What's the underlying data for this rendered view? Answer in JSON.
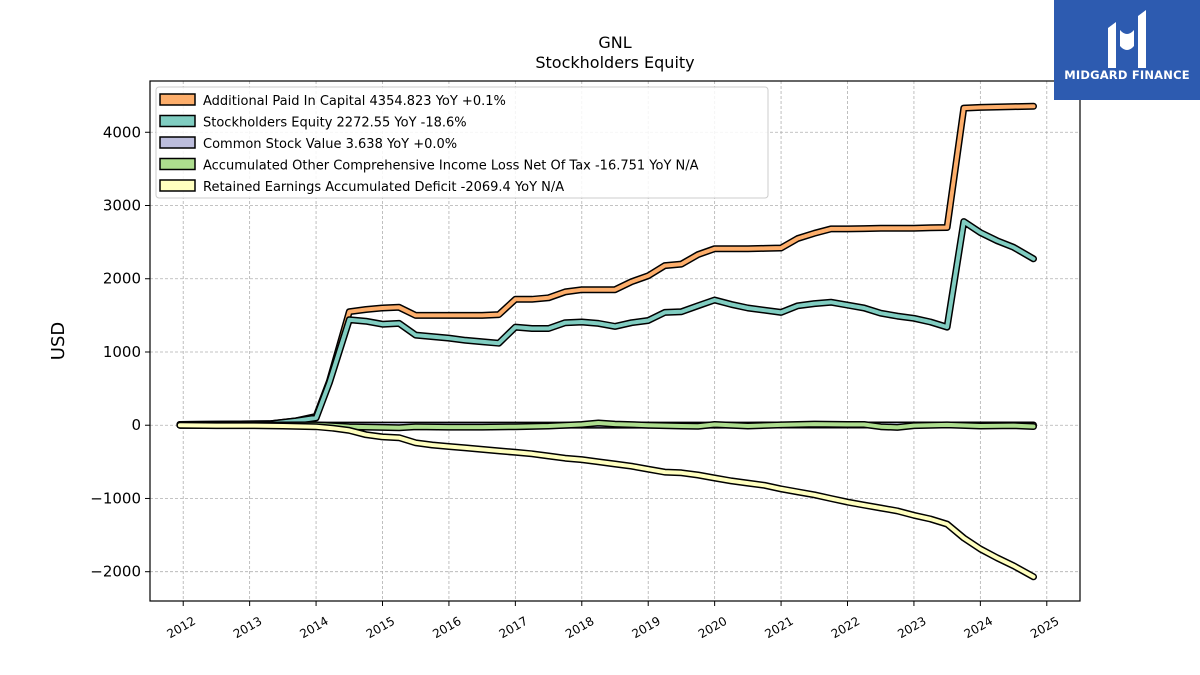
{
  "logo": {
    "name": "MIDGARD FINANCE"
  },
  "chart_data": {
    "type": "line",
    "title": "GNL",
    "subtitle": "Stockholders  Equity",
    "xlabel": "",
    "ylabel": "USD",
    "xlim": [
      2011.5,
      2025.5
    ],
    "ylim": [
      -2400,
      4700
    ],
    "yticks": [
      -2000,
      -1000,
      0,
      1000,
      2000,
      3000,
      4000
    ],
    "ytick_labels": [
      "−2000",
      "−1000",
      "0",
      "1000",
      "2000",
      "3000",
      "4000"
    ],
    "xticks": [
      2012,
      2013,
      2014,
      2015,
      2016,
      2017,
      2018,
      2019,
      2020,
      2021,
      2022,
      2023,
      2024,
      2025
    ],
    "xtick_labels": [
      "2012",
      "2013",
      "2014",
      "2015",
      "2016",
      "2017",
      "2018",
      "2019",
      "2020",
      "2021",
      "2022",
      "2023",
      "2024",
      "2025"
    ],
    "grid": true,
    "legend_position": "top-left",
    "series": [
      {
        "name": "Additional Paid In Capital",
        "legend_label": "Additional Paid In Capital  4354.823 YoY +0.1%",
        "color": "#fdae6b",
        "points": [
          [
            2011.95,
            10
          ],
          [
            2013.3,
            20
          ],
          [
            2013.7,
            60
          ],
          [
            2014.0,
            120
          ],
          [
            2014.2,
            600
          ],
          [
            2014.5,
            1550
          ],
          [
            2014.75,
            1580
          ],
          [
            2015.0,
            1600
          ],
          [
            2015.25,
            1610
          ],
          [
            2015.5,
            1500
          ],
          [
            2015.75,
            1500
          ],
          [
            2016.0,
            1500
          ],
          [
            2016.25,
            1500
          ],
          [
            2016.5,
            1500
          ],
          [
            2016.75,
            1510
          ],
          [
            2017.0,
            1720
          ],
          [
            2017.25,
            1720
          ],
          [
            2017.5,
            1740
          ],
          [
            2017.75,
            1820
          ],
          [
            2018.0,
            1850
          ],
          [
            2018.25,
            1850
          ],
          [
            2018.5,
            1850
          ],
          [
            2018.75,
            1960
          ],
          [
            2019.0,
            2040
          ],
          [
            2019.25,
            2180
          ],
          [
            2019.5,
            2200
          ],
          [
            2019.75,
            2330
          ],
          [
            2020.0,
            2410
          ],
          [
            2020.25,
            2410
          ],
          [
            2020.5,
            2410
          ],
          [
            2020.75,
            2415
          ],
          [
            2021.0,
            2420
          ],
          [
            2021.25,
            2550
          ],
          [
            2021.5,
            2620
          ],
          [
            2021.75,
            2680
          ],
          [
            2022.0,
            2680
          ],
          [
            2022.25,
            2685
          ],
          [
            2022.5,
            2690
          ],
          [
            2022.75,
            2690
          ],
          [
            2023.0,
            2690
          ],
          [
            2023.25,
            2695
          ],
          [
            2023.5,
            2700
          ],
          [
            2023.75,
            4330
          ],
          [
            2024.0,
            4340
          ],
          [
            2024.25,
            4345
          ],
          [
            2024.5,
            4350
          ],
          [
            2024.8,
            4354.823
          ]
        ]
      },
      {
        "name": "Stockholders Equity",
        "legend_label": "Stockholders Equity  2272.55 YoY -18.6%",
        "color": "#80cdc1",
        "points": [
          [
            2011.95,
            10
          ],
          [
            2013.3,
            20
          ],
          [
            2013.7,
            60
          ],
          [
            2014.0,
            100
          ],
          [
            2014.2,
            580
          ],
          [
            2014.5,
            1440
          ],
          [
            2014.75,
            1420
          ],
          [
            2015.0,
            1380
          ],
          [
            2015.25,
            1390
          ],
          [
            2015.5,
            1230
          ],
          [
            2015.75,
            1210
          ],
          [
            2016.0,
            1190
          ],
          [
            2016.25,
            1160
          ],
          [
            2016.5,
            1140
          ],
          [
            2016.75,
            1120
          ],
          [
            2017.0,
            1340
          ],
          [
            2017.25,
            1320
          ],
          [
            2017.5,
            1320
          ],
          [
            2017.75,
            1400
          ],
          [
            2018.0,
            1410
          ],
          [
            2018.25,
            1390
          ],
          [
            2018.5,
            1350
          ],
          [
            2018.75,
            1400
          ],
          [
            2019.0,
            1430
          ],
          [
            2019.25,
            1540
          ],
          [
            2019.5,
            1550
          ],
          [
            2019.75,
            1630
          ],
          [
            2020.0,
            1710
          ],
          [
            2020.25,
            1650
          ],
          [
            2020.5,
            1600
          ],
          [
            2020.75,
            1570
          ],
          [
            2021.0,
            1540
          ],
          [
            2021.25,
            1630
          ],
          [
            2021.5,
            1660
          ],
          [
            2021.75,
            1680
          ],
          [
            2022.0,
            1640
          ],
          [
            2022.25,
            1600
          ],
          [
            2022.5,
            1530
          ],
          [
            2022.75,
            1490
          ],
          [
            2023.0,
            1460
          ],
          [
            2023.25,
            1410
          ],
          [
            2023.5,
            1340
          ],
          [
            2023.75,
            2780
          ],
          [
            2024.0,
            2630
          ],
          [
            2024.25,
            2520
          ],
          [
            2024.5,
            2430
          ],
          [
            2024.8,
            2272.55
          ]
        ]
      },
      {
        "name": "Common Stock Value",
        "legend_label": "Common Stock Value  3.638 YoY +0.0%",
        "color": "#bcbddc",
        "points": [
          [
            2011.95,
            0
          ],
          [
            2012.5,
            0.5
          ],
          [
            2013.0,
            0.8
          ],
          [
            2013.5,
            1.0
          ],
          [
            2014.0,
            1.2
          ],
          [
            2014.5,
            1.7
          ],
          [
            2015.0,
            1.7
          ],
          [
            2015.5,
            1.7
          ],
          [
            2016.0,
            1.7
          ],
          [
            2016.5,
            1.7
          ],
          [
            2017.0,
            1.8
          ],
          [
            2017.5,
            1.8
          ],
          [
            2018.0,
            1.8
          ],
          [
            2018.5,
            1.9
          ],
          [
            2019.0,
            2.0
          ],
          [
            2019.5,
            2.1
          ],
          [
            2020.0,
            2.2
          ],
          [
            2020.5,
            2.3
          ],
          [
            2021.0,
            2.4
          ],
          [
            2021.5,
            2.5
          ],
          [
            2022.0,
            2.6
          ],
          [
            2022.5,
            2.7
          ],
          [
            2023.0,
            2.8
          ],
          [
            2023.5,
            2.9
          ],
          [
            2024.0,
            3.6
          ],
          [
            2024.5,
            3.6
          ],
          [
            2024.8,
            3.638
          ]
        ]
      },
      {
        "name": "Accumulated Other Comprehensive Income Loss Net Of Tax",
        "legend_label": "Accumulated Other Comprehensive Income Loss Net Of Tax  -16.751 YoY N/A",
        "color": "#addd8e",
        "points": [
          [
            2011.95,
            0
          ],
          [
            2013.0,
            0
          ],
          [
            2014.0,
            5
          ],
          [
            2014.5,
            -20
          ],
          [
            2015.0,
            -30
          ],
          [
            2015.25,
            -35
          ],
          [
            2015.5,
            -20
          ],
          [
            2016.0,
            -25
          ],
          [
            2016.5,
            -25
          ],
          [
            2017.0,
            -20
          ],
          [
            2017.5,
            -10
          ],
          [
            2018.0,
            10
          ],
          [
            2018.25,
            30
          ],
          [
            2018.5,
            15
          ],
          [
            2019.0,
            0
          ],
          [
            2019.5,
            -10
          ],
          [
            2019.75,
            -15
          ],
          [
            2020.0,
            10
          ],
          [
            2020.5,
            -10
          ],
          [
            2021.0,
            5
          ],
          [
            2021.5,
            15
          ],
          [
            2022.0,
            10
          ],
          [
            2022.25,
            10
          ],
          [
            2022.5,
            -20
          ],
          [
            2022.75,
            -30
          ],
          [
            2023.0,
            -5
          ],
          [
            2023.5,
            5
          ],
          [
            2024.0,
            -10
          ],
          [
            2024.5,
            -5
          ],
          [
            2024.8,
            -16.751
          ]
        ]
      },
      {
        "name": "Retained Earnings Accumulated Deficit",
        "legend_label": "Retained Earnings Accumulated Deficit  -2069.4 YoY N/A",
        "color": "#ffffbf",
        "points": [
          [
            2011.95,
            0
          ],
          [
            2012.5,
            -5
          ],
          [
            2013.0,
            -5
          ],
          [
            2013.5,
            -10
          ],
          [
            2014.0,
            -20
          ],
          [
            2014.25,
            -40
          ],
          [
            2014.5,
            -70
          ],
          [
            2014.75,
            -130
          ],
          [
            2015.0,
            -160
          ],
          [
            2015.25,
            -170
          ],
          [
            2015.5,
            -240
          ],
          [
            2015.75,
            -270
          ],
          [
            2016.0,
            -290
          ],
          [
            2016.25,
            -310
          ],
          [
            2016.5,
            -330
          ],
          [
            2016.75,
            -350
          ],
          [
            2017.0,
            -370
          ],
          [
            2017.25,
            -390
          ],
          [
            2017.5,
            -420
          ],
          [
            2017.75,
            -450
          ],
          [
            2018.0,
            -470
          ],
          [
            2018.25,
            -500
          ],
          [
            2018.5,
            -530
          ],
          [
            2018.75,
            -560
          ],
          [
            2019.0,
            -600
          ],
          [
            2019.25,
            -640
          ],
          [
            2019.5,
            -650
          ],
          [
            2019.75,
            -680
          ],
          [
            2020.0,
            -720
          ],
          [
            2020.25,
            -760
          ],
          [
            2020.5,
            -790
          ],
          [
            2020.75,
            -820
          ],
          [
            2021.0,
            -870
          ],
          [
            2021.25,
            -910
          ],
          [
            2021.5,
            -950
          ],
          [
            2021.75,
            -1000
          ],
          [
            2022.0,
            -1050
          ],
          [
            2022.25,
            -1090
          ],
          [
            2022.5,
            -1130
          ],
          [
            2022.75,
            -1170
          ],
          [
            2023.0,
            -1230
          ],
          [
            2023.25,
            -1280
          ],
          [
            2023.5,
            -1350
          ],
          [
            2023.75,
            -1540
          ],
          [
            2024.0,
            -1690
          ],
          [
            2024.25,
            -1810
          ],
          [
            2024.5,
            -1920
          ],
          [
            2024.8,
            -2069.4
          ]
        ]
      }
    ]
  }
}
